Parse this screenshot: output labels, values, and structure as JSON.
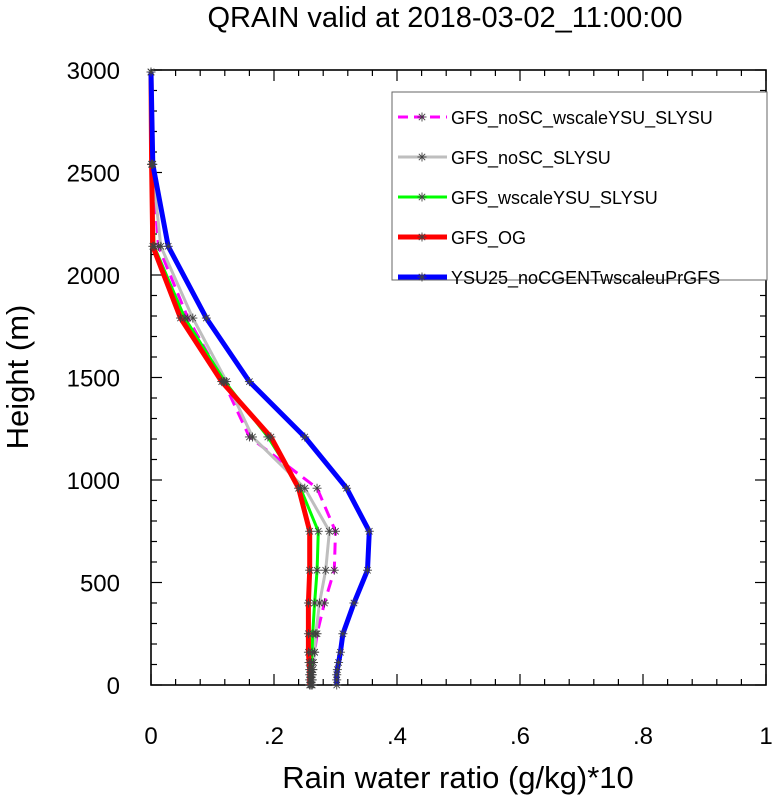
{
  "chart_data": {
    "type": "line",
    "title": "QRAIN valid at 2018-03-02_11:00:00",
    "xlabel": "Rain water ratio (g/kg)*10",
    "ylabel": "Height (m)",
    "xlim": [
      0,
      1
    ],
    "ylim": [
      0,
      3000
    ],
    "x_ticks": [
      {
        "value": 0,
        "label": "0"
      },
      {
        "value": 0.2,
        "label": ".2"
      },
      {
        "value": 0.4,
        "label": ".4"
      },
      {
        "value": 0.6,
        "label": ".6"
      },
      {
        "value": 0.8,
        "label": ".8"
      },
      {
        "value": 1,
        "label": "1"
      }
    ],
    "y_ticks": [
      {
        "value": 0,
        "label": "0"
      },
      {
        "value": 500,
        "label": "500"
      },
      {
        "value": 1000,
        "label": "1000"
      },
      {
        "value": 1500,
        "label": "1500"
      },
      {
        "value": 2000,
        "label": "2000"
      },
      {
        "value": 2500,
        "label": "2500"
      },
      {
        "value": 3000,
        "label": "3000"
      }
    ],
    "grid": false,
    "legend_position": "top-right",
    "marker": "asterisk",
    "heights": [
      0,
      25,
      50,
      75,
      110,
      160,
      250,
      400,
      560,
      750,
      960,
      1210,
      1480,
      1790,
      2140,
      2540,
      2990
    ],
    "series": [
      {
        "name": "GFS_noSC_wscaleYSU_SLYSU",
        "color": "#ff00ff",
        "dash": true,
        "width": "medium",
        "values": [
          0.262,
          0.262,
          0.262,
          0.263,
          0.264,
          0.266,
          0.27,
          0.282,
          0.298,
          0.3,
          0.27,
          0.16,
          0.118,
          0.06,
          0.012,
          0.002,
          0.0
        ]
      },
      {
        "name": "GFS_noSC_SLYSU",
        "color": "#bebebe",
        "dash": false,
        "width": "medium",
        "values": [
          0.262,
          0.262,
          0.262,
          0.263,
          0.264,
          0.266,
          0.268,
          0.274,
          0.284,
          0.29,
          0.25,
          0.165,
          0.123,
          0.068,
          0.016,
          0.002,
          0.0
        ]
      },
      {
        "name": "GFS_wscaleYSU_SLYSU",
        "color": "#00ff00",
        "dash": false,
        "width": "medium",
        "values": [
          0.26,
          0.26,
          0.26,
          0.26,
          0.261,
          0.262,
          0.263,
          0.266,
          0.27,
          0.272,
          0.243,
          0.19,
          0.12,
          0.055,
          0.005,
          0.001,
          0.0
        ]
      },
      {
        "name": "GFS_OG",
        "color": "#ff0000",
        "dash": false,
        "width": "thick",
        "values": [
          0.258,
          0.258,
          0.258,
          0.258,
          0.257,
          0.256,
          0.256,
          0.256,
          0.258,
          0.258,
          0.24,
          0.195,
          0.115,
          0.048,
          0.003,
          0.001,
          0.0
        ]
      },
      {
        "name": "YSU25_noCGENTwscaleuPrGFS",
        "color": "#0000ff",
        "dash": false,
        "width": "thick",
        "values": [
          0.302,
          0.302,
          0.302,
          0.303,
          0.305,
          0.308,
          0.312,
          0.33,
          0.352,
          0.355,
          0.318,
          0.25,
          0.16,
          0.09,
          0.028,
          0.003,
          0.0
        ]
      }
    ]
  }
}
